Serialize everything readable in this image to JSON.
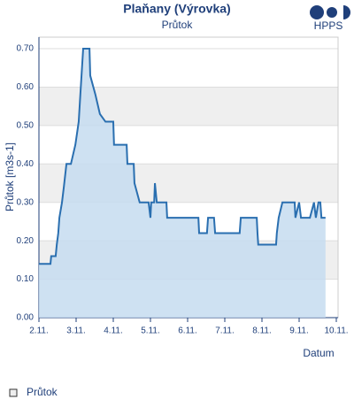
{
  "chart_data": {
    "type": "line",
    "title": "Plaňany (Výrovka)",
    "subtitle": "Průtok",
    "logo": "HPPS",
    "y_label": "Průtok [m3s-1]",
    "x_label": "Datum",
    "x": [
      2.0,
      2.31,
      2.33,
      2.45,
      2.48,
      2.52,
      2.55,
      2.62,
      2.67,
      2.74,
      2.86,
      2.98,
      3.07,
      3.12,
      3.19,
      3.36,
      3.38,
      3.52,
      3.64,
      3.79,
      4.0,
      4.02,
      4.36,
      4.38,
      4.55,
      4.57,
      4.71,
      4.95,
      5.0,
      5.02,
      5.1,
      5.12,
      5.17,
      5.43,
      5.45,
      6.29,
      6.31,
      6.52,
      6.55,
      6.71,
      6.74,
      7.4,
      7.43,
      7.86,
      7.88,
      7.9,
      8.38,
      8.4,
      8.45,
      8.55,
      8.88,
      8.9,
      9.0,
      9.05,
      9.29,
      9.4,
      9.45,
      9.52,
      9.57,
      9.6,
      9.71
    ],
    "series": [
      {
        "name": "Průtok",
        "color": "#2a6fb0",
        "fill": "#c6dcf0",
        "values": [
          0.14,
          0.14,
          0.16,
          0.16,
          0.19,
          0.22,
          0.26,
          0.3,
          0.34,
          0.4,
          0.4,
          0.45,
          0.51,
          0.59,
          0.7,
          0.7,
          0.63,
          0.58,
          0.53,
          0.51,
          0.51,
          0.45,
          0.45,
          0.4,
          0.4,
          0.35,
          0.3,
          0.3,
          0.26,
          0.3,
          0.3,
          0.35,
          0.3,
          0.3,
          0.26,
          0.26,
          0.22,
          0.22,
          0.26,
          0.26,
          0.22,
          0.22,
          0.26,
          0.26,
          0.22,
          0.19,
          0.19,
          0.22,
          0.26,
          0.3,
          0.3,
          0.26,
          0.3,
          0.26,
          0.26,
          0.3,
          0.26,
          0.3,
          0.3,
          0.26,
          0.26
        ]
      }
    ],
    "xlim": [
      2,
      10
    ],
    "xticks": [
      {
        "value": 2,
        "label": "2.11."
      },
      {
        "value": 3,
        "label": "3.11."
      },
      {
        "value": 4,
        "label": "4.11."
      },
      {
        "value": 5,
        "label": "5.11."
      },
      {
        "value": 6,
        "label": "6.11."
      },
      {
        "value": 7,
        "label": "7.11."
      },
      {
        "value": 8,
        "label": "8.11."
      },
      {
        "value": 9,
        "label": "9.11."
      },
      {
        "value": 10,
        "label": "10.11."
      }
    ],
    "ylim": [
      0,
      0.73
    ],
    "yticks": [
      {
        "value": 0,
        "label": "0.00"
      },
      {
        "value": 0.1,
        "label": "0.10"
      },
      {
        "value": 0.2,
        "label": "0.20"
      },
      {
        "value": 0.3,
        "label": "0.30"
      },
      {
        "value": 0.4,
        "label": "0.40"
      },
      {
        "value": 0.5,
        "label": "0.50"
      },
      {
        "value": 0.6,
        "label": "0.60"
      },
      {
        "value": 0.7,
        "label": "0.70"
      }
    ],
    "grid": true
  }
}
